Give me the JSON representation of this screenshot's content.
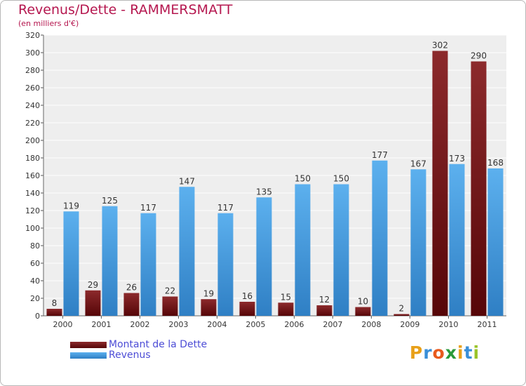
{
  "chart_data": {
    "type": "bar",
    "title": "Revenus/Dette - RAMMERSMATT",
    "subtitle": "(en milliers d'€)",
    "categories": [
      "2000",
      "2001",
      "2002",
      "2003",
      "2004",
      "2005",
      "2006",
      "2007",
      "2008",
      "2009",
      "2010",
      "2011"
    ],
    "series": [
      {
        "name": "Montant de la Dette",
        "color": "#7a1416",
        "values": [
          8,
          29,
          26,
          22,
          19,
          16,
          15,
          12,
          10,
          2,
          302,
          290
        ]
      },
      {
        "name": "Revenus",
        "color": "#4aa3e8",
        "values": [
          119,
          125,
          117,
          147,
          117,
          135,
          150,
          150,
          177,
          167,
          173,
          168
        ]
      }
    ],
    "ylim": [
      0,
      320
    ],
    "yticks": [
      0,
      20,
      40,
      60,
      80,
      100,
      120,
      140,
      160,
      180,
      200,
      220,
      240,
      260,
      280,
      300,
      320
    ],
    "grid": true,
    "legend": "bottom-left"
  },
  "logo": {
    "letters": [
      "P",
      "r",
      "o",
      "x",
      "i",
      "t",
      "i"
    ],
    "colors": [
      "#e8a019",
      "#3a8fd8",
      "#e85a1e",
      "#2a9a3a",
      "#e8a019",
      "#3a8fd8",
      "#9ac42a"
    ]
  }
}
